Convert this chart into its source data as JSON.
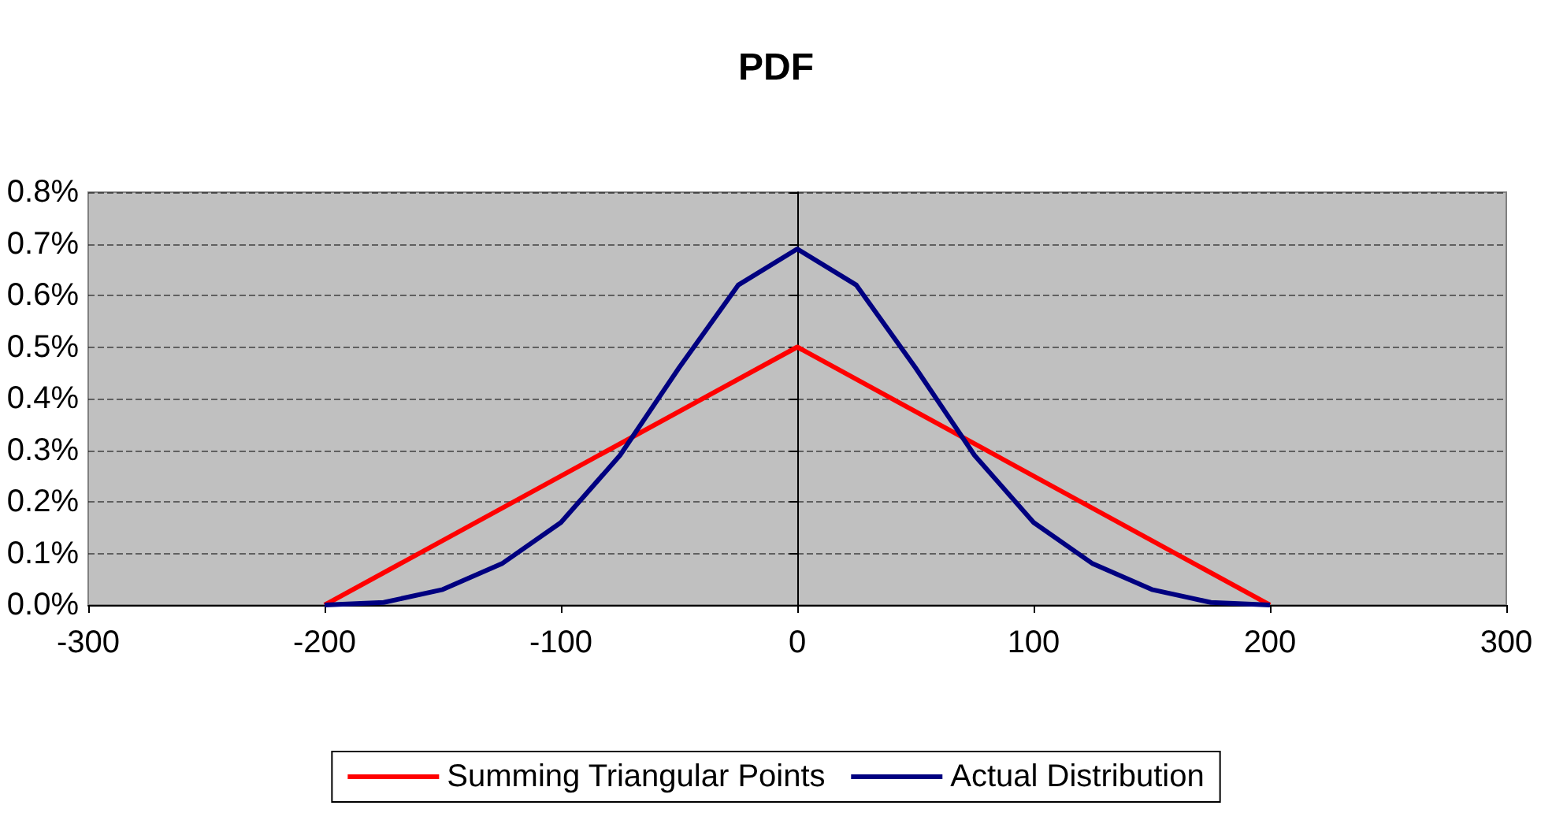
{
  "chart_data": {
    "type": "line",
    "title": "PDF",
    "xlim": [
      -300,
      300
    ],
    "xticks": [
      -300,
      -200,
      -100,
      0,
      100,
      200,
      300
    ],
    "ylim": [
      0,
      0.8
    ],
    "yticks": [
      {
        "value": 0,
        "label": "0.0%"
      },
      {
        "value": 0.1,
        "label": "0.1%"
      },
      {
        "value": 0.2,
        "label": "0.2%"
      },
      {
        "value": 0.3,
        "label": "0.3%"
      },
      {
        "value": 0.4,
        "label": "0.4%"
      },
      {
        "value": 0.5,
        "label": "0.5%"
      },
      {
        "value": 0.6,
        "label": "0.6%"
      },
      {
        "value": 0.7,
        "label": "0.7%"
      },
      {
        "value": 0.8,
        "label": "0.8%"
      }
    ],
    "grid": "y",
    "legend": "bottom",
    "marker": "none",
    "line_style": "solid",
    "series": [
      {
        "name": "Summing Triangular Points",
        "color": "#ff0000",
        "x": [
          -200,
          0,
          200
        ],
        "values": [
          0,
          0.5,
          0
        ]
      },
      {
        "name": "Actual Distribution",
        "color": "#000080",
        "x": [
          -200,
          -175,
          -150,
          -125,
          -100,
          -75,
          -50,
          -25,
          0,
          25,
          50,
          75,
          100,
          125,
          150,
          175,
          200
        ],
        "values": [
          0,
          0.005,
          0.03,
          0.08,
          0.16,
          0.29,
          0.46,
          0.62,
          0.69,
          0.62,
          0.46,
          0.29,
          0.16,
          0.08,
          0.03,
          0.005,
          0
        ]
      }
    ]
  }
}
